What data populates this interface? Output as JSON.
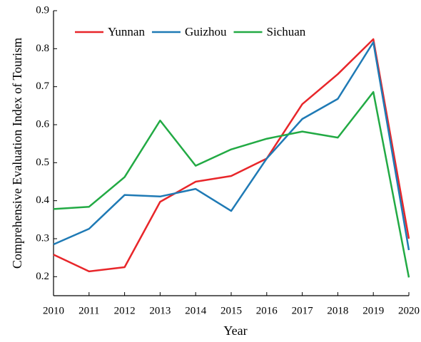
{
  "chart_data": {
    "type": "line",
    "xlabel": "Year",
    "ylabel": "Comprehensive Evaluation Index of Tourism",
    "x": [
      2010,
      2011,
      2012,
      2013,
      2014,
      2015,
      2016,
      2017,
      2018,
      2019,
      2020
    ],
    "series": [
      {
        "name": "Yunnan",
        "color": "#e8262a",
        "values": [
          0.258,
          0.214,
          0.225,
          0.397,
          0.45,
          0.465,
          0.511,
          0.654,
          0.733,
          0.825,
          0.3
        ]
      },
      {
        "name": "Guizhou",
        "color": "#1f7ab5",
        "values": [
          0.285,
          0.326,
          0.415,
          0.411,
          0.431,
          0.373,
          0.511,
          0.615,
          0.668,
          0.817,
          0.27
        ]
      },
      {
        "name": "Sichuan",
        "color": "#22aa44",
        "values": [
          0.378,
          0.384,
          0.462,
          0.611,
          0.492,
          0.535,
          0.563,
          0.582,
          0.566,
          0.686,
          0.198
        ]
      }
    ],
    "xlim": [
      2010,
      2020
    ],
    "xticks": [
      2010,
      2011,
      2012,
      2013,
      2014,
      2015,
      2016,
      2017,
      2018,
      2019,
      2020
    ],
    "ylim": [
      0.15,
      0.9
    ],
    "yticks": [
      0.2,
      0.3,
      0.4,
      0.5,
      0.6,
      0.7,
      0.8,
      0.9
    ],
    "legend": "top-left"
  }
}
